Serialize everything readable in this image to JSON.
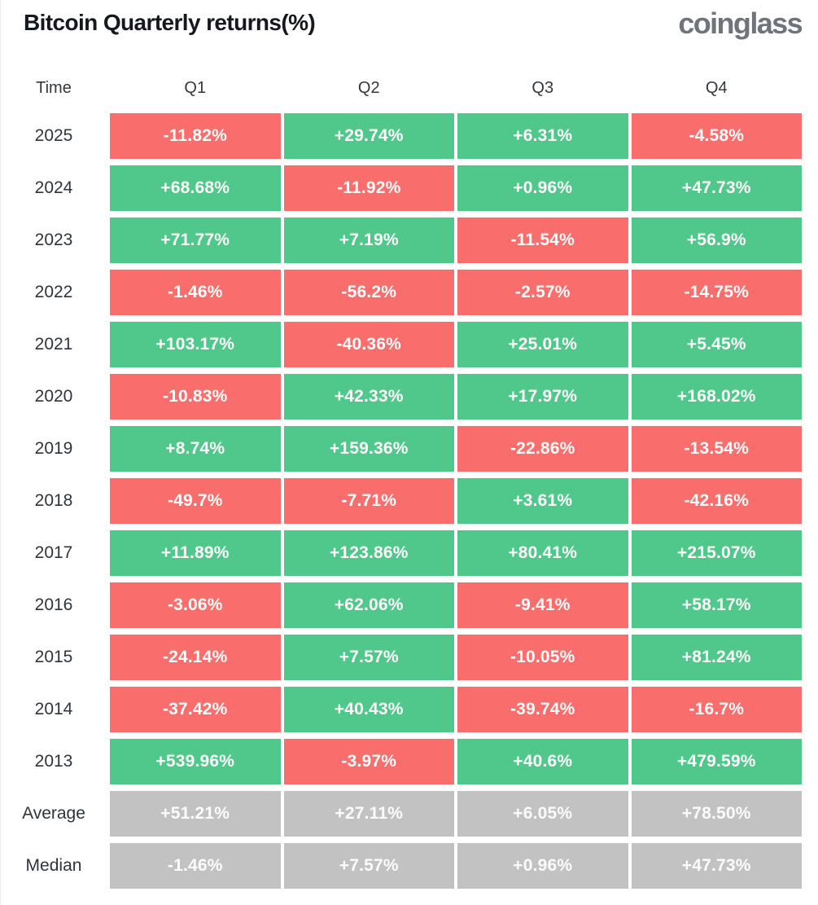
{
  "header": {
    "title": "Bitcoin Quarterly returns(%)",
    "logo": "coinglass"
  },
  "colors": {
    "positive": "#50C88C",
    "negative": "#FA6D6D",
    "neutral": "#C2C2C2",
    "cell_text": "#FCFCFC",
    "label_text": "#2F343C",
    "title_text": "#15181E",
    "logo_text": "#6F747C"
  },
  "chart_data": {
    "type": "heatmap",
    "title": "Bitcoin Quarterly returns(%)",
    "columns": [
      "Time",
      "Q1",
      "Q2",
      "Q3",
      "Q4"
    ],
    "legend_position": "none",
    "grid": false,
    "rows": [
      {
        "label": "2025",
        "kind": "year",
        "values": [
          "-11.82%",
          "+29.74%",
          "+6.31%",
          "-4.58%"
        ]
      },
      {
        "label": "2024",
        "kind": "year",
        "values": [
          "+68.68%",
          "-11.92%",
          "+0.96%",
          "+47.73%"
        ]
      },
      {
        "label": "2023",
        "kind": "year",
        "values": [
          "+71.77%",
          "+7.19%",
          "-11.54%",
          "+56.9%"
        ]
      },
      {
        "label": "2022",
        "kind": "year",
        "values": [
          "-1.46%",
          "-56.2%",
          "-2.57%",
          "-14.75%"
        ]
      },
      {
        "label": "2021",
        "kind": "year",
        "values": [
          "+103.17%",
          "-40.36%",
          "+25.01%",
          "+5.45%"
        ]
      },
      {
        "label": "2020",
        "kind": "year",
        "values": [
          "-10.83%",
          "+42.33%",
          "+17.97%",
          "+168.02%"
        ]
      },
      {
        "label": "2019",
        "kind": "year",
        "values": [
          "+8.74%",
          "+159.36%",
          "-22.86%",
          "-13.54%"
        ]
      },
      {
        "label": "2018",
        "kind": "year",
        "values": [
          "-49.7%",
          "-7.71%",
          "+3.61%",
          "-42.16%"
        ]
      },
      {
        "label": "2017",
        "kind": "year",
        "values": [
          "+11.89%",
          "+123.86%",
          "+80.41%",
          "+215.07%"
        ]
      },
      {
        "label": "2016",
        "kind": "year",
        "values": [
          "-3.06%",
          "+62.06%",
          "-9.41%",
          "+58.17%"
        ]
      },
      {
        "label": "2015",
        "kind": "year",
        "values": [
          "-24.14%",
          "+7.57%",
          "-10.05%",
          "+81.24%"
        ]
      },
      {
        "label": "2014",
        "kind": "year",
        "values": [
          "-37.42%",
          "+40.43%",
          "-39.74%",
          "-16.7%"
        ]
      },
      {
        "label": "2013",
        "kind": "year",
        "values": [
          "+539.96%",
          "-3.97%",
          "+40.6%",
          "+479.59%"
        ]
      },
      {
        "label": "Average",
        "kind": "summary",
        "values": [
          "+51.21%",
          "+27.11%",
          "+6.05%",
          "+78.50%"
        ]
      },
      {
        "label": "Median",
        "kind": "summary",
        "values": [
          "-1.46%",
          "+7.57%",
          "+0.96%",
          "+47.73%"
        ]
      }
    ]
  }
}
